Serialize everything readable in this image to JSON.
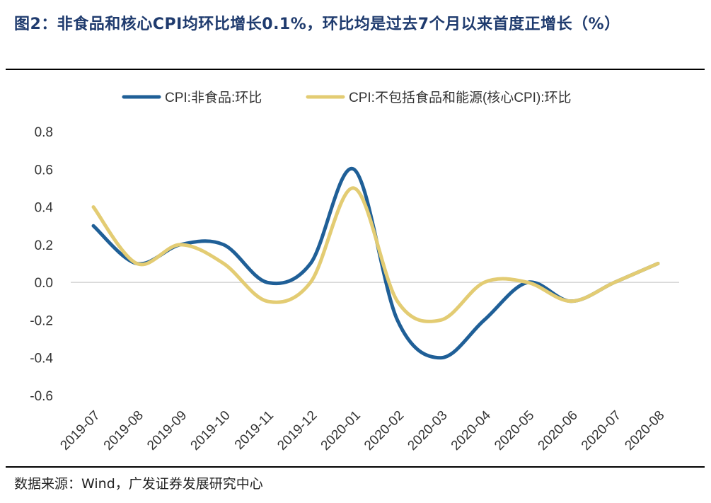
{
  "header": {
    "title": "图2：非食品和核心CPI均环比增长0.1%，环比均是过去7个月以来首度正增长（%）"
  },
  "footer": {
    "source": "数据来源：Wind，广发证券发展研究中心"
  },
  "colors": {
    "series_1": "#1f5f97",
    "series_2": "#e3cc73",
    "title": "#1f3b6e",
    "zero_line": "#cccccc"
  },
  "chart_data": {
    "type": "line",
    "title": "",
    "xlabel": "",
    "ylabel": "",
    "ylim": [
      -0.6,
      0.8
    ],
    "yticks": [
      "0.8",
      "0.6",
      "0.4",
      "0.2",
      "0.0",
      "-0.2",
      "-0.4",
      "-0.6"
    ],
    "ytick_values": [
      0.8,
      0.6,
      0.4,
      0.2,
      0.0,
      -0.2,
      -0.4,
      -0.6
    ],
    "legend_position": "top-center",
    "categories": [
      "2019-07",
      "2019-08",
      "2019-09",
      "2019-10",
      "2019-11",
      "2019-12",
      "2020-01",
      "2020-02",
      "2020-03",
      "2020-04",
      "2020-05",
      "2020-06",
      "2020-07",
      "2020-08"
    ],
    "series": [
      {
        "name": "CPI:非食品:环比",
        "values": [
          0.3,
          0.1,
          0.2,
          0.2,
          0.0,
          0.1,
          0.6,
          -0.2,
          -0.4,
          -0.2,
          0.0,
          -0.1,
          0.0,
          0.1
        ]
      },
      {
        "name": "CPI:不包括食品和能源(核心CPI):环比",
        "values": [
          0.4,
          0.1,
          0.2,
          0.1,
          -0.1,
          0.0,
          0.5,
          -0.1,
          -0.2,
          0.0,
          0.0,
          -0.1,
          0.0,
          0.1
        ]
      }
    ]
  }
}
